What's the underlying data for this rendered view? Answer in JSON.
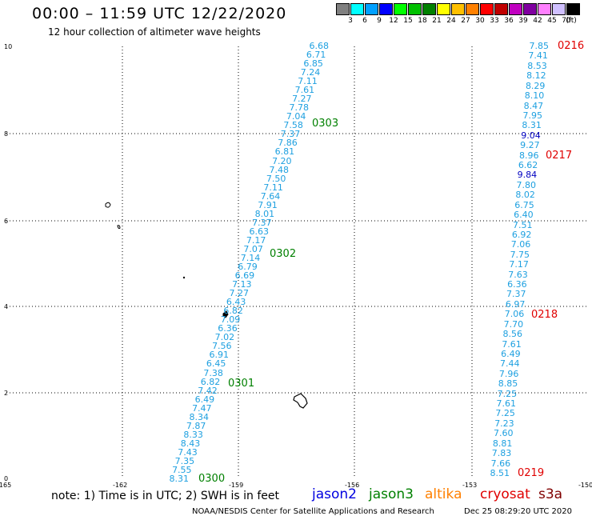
{
  "header": {
    "title": "00:00 – 11:59 UTC 12/22/2020",
    "subtitle": "12 hour collection of altimeter wave heights"
  },
  "legend": {
    "unit": "(ft)",
    "bins": [
      {
        "label": "3",
        "color": "#808080"
      },
      {
        "label": "6",
        "color": "#00ffff"
      },
      {
        "label": "9",
        "color": "#00a0ff"
      },
      {
        "label": "12",
        "color": "#0000ff"
      },
      {
        "label": "15",
        "color": "#00ff00"
      },
      {
        "label": "18",
        "color": "#00c000"
      },
      {
        "label": "21",
        "color": "#008000"
      },
      {
        "label": "24",
        "color": "#ffff00"
      },
      {
        "label": "27",
        "color": "#ffc000"
      },
      {
        "label": "30",
        "color": "#ff8000"
      },
      {
        "label": "33",
        "color": "#ff0000"
      },
      {
        "label": "36",
        "color": "#c00000"
      },
      {
        "label": "39",
        "color": "#c000c0"
      },
      {
        "label": "42",
        "color": "#8000a0"
      },
      {
        "label": "45",
        "color": "#ff80ff"
      },
      {
        "label": "70",
        "color": "#d0c0ff"
      },
      {
        "label": "",
        "color": "#000000"
      }
    ]
  },
  "axes": {
    "x_ticks": [
      "-165",
      "-162",
      "-159",
      "-156",
      "-153",
      "-150"
    ],
    "y_ticks": [
      "0",
      "2",
      "4",
      "6",
      "8",
      "10"
    ]
  },
  "tracks": [
    {
      "name": "west",
      "color": "#1ea0e0",
      "values": [
        "6.68",
        "6.71",
        "6.85",
        "7.24",
        "7.11",
        "7.61",
        "7.27",
        "7.78",
        "7.04",
        "7.58",
        "7.37",
        "7.86",
        "6.81",
        "7.20",
        "7.48",
        "7.50",
        "7.11",
        "7.64",
        "7.91",
        "8.01",
        "7.37",
        "6.63",
        "7.17",
        "7.07",
        "7.14",
        "6.79",
        "6.69",
        "7.13",
        "7.27",
        "6.43",
        "6.82",
        "7.09",
        "6.36",
        "7.02",
        "7.56",
        "6.91",
        "6.45",
        "7.38",
        "6.82",
        "7.42",
        "6.49",
        "7.47",
        "8.34",
        "7.87",
        "8.33",
        "8.43",
        "7.43",
        "7.35",
        "7.55",
        "8.31"
      ]
    },
    {
      "name": "east",
      "color": "#1ea0e0",
      "values": [
        "7.85",
        "7.41",
        "8.53",
        "8.12",
        "8.29",
        "8.10",
        "8.47",
        "7.95",
        "8.31",
        "9.04",
        "9.27",
        "8.96",
        "6.62",
        "9.84",
        "7.80",
        "8.02",
        "6.75",
        "6.40",
        "7.51",
        "6.92",
        "7.06",
        "7.75",
        "7.17",
        "7.63",
        "6.36",
        "7.37",
        "6.97",
        "7.06",
        "7.70",
        "8.56",
        "7.61",
        "6.49",
        "7.44",
        "7.96",
        "8.85",
        "7.25",
        "7.61",
        "7.25",
        "7.23",
        "7.60",
        "8.81",
        "7.83",
        "7.66",
        "8.51"
      ],
      "highlight_indices": [
        9,
        13
      ]
    }
  ],
  "pass_labels": [
    {
      "text": "0303",
      "color": "#008000"
    },
    {
      "text": "0302",
      "color": "#008000"
    },
    {
      "text": "0301",
      "color": "#008000"
    },
    {
      "text": "0300",
      "color": "#008000"
    },
    {
      "text": "0216",
      "color": "#e00000"
    },
    {
      "text": "0217",
      "color": "#e00000"
    },
    {
      "text": "0218",
      "color": "#e00000"
    },
    {
      "text": "0219",
      "color": "#e00000"
    }
  ],
  "footer": {
    "note": "note: 1) Time is in UTC; 2) SWH is in feet",
    "satellites": [
      {
        "name": "jason2",
        "color": "#0000e0"
      },
      {
        "name": "jason3",
        "color": "#008000"
      },
      {
        "name": "altika",
        "color": "#ff8000"
      },
      {
        "name": "cryosat",
        "color": "#e00000"
      },
      {
        "name": "s3a",
        "color": "#800000"
      }
    ],
    "credit": "NOAA/NESDIS Center for Satellite Applications and Research",
    "timestamp": "Dec 25 08:29:20 UTC 2020"
  }
}
